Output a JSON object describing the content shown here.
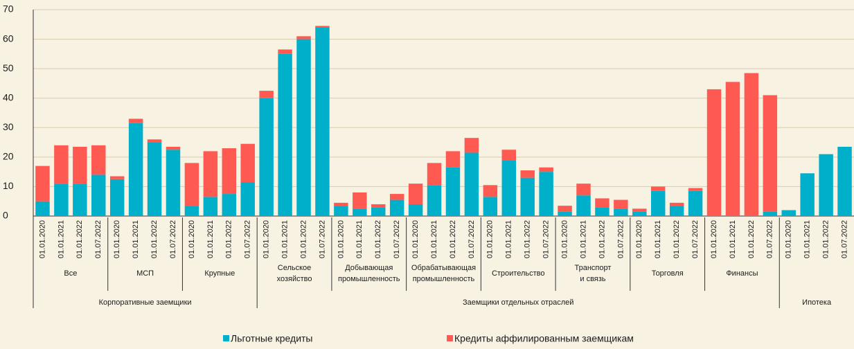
{
  "chart_data": {
    "type": "stacked-bar",
    "sectors": [
      {
        "name": "Корпоративные заемщики",
        "groups": [
          {
            "name": [
              "Все"
            ],
            "categories": [
              "01.01.2020",
              "01.01.2021",
              "01.01.2022",
              "01.07.2022"
            ]
          },
          {
            "name": [
              "МСП"
            ],
            "categories": [
              "01.01.2020",
              "01.01.2021",
              "01.01.2022",
              "01.07.2022"
            ]
          },
          {
            "name": [
              "Крупные"
            ],
            "categories": [
              "01.01.2020",
              "01.01.2021",
              "01.01.2022",
              "01.07.2022"
            ]
          }
        ]
      },
      {
        "name": "Заемщики отдельных отраслей",
        "groups": [
          {
            "name": [
              "Сельское",
              "хозяйство"
            ],
            "categories": [
              "01.01.2020",
              "01.01.2021",
              "01.01.2022",
              "01.07.2022"
            ]
          },
          {
            "name": [
              "Добывающая",
              "промышленность"
            ],
            "categories": [
              "01.01.2020",
              "01.01.2021",
              "01.01.2022",
              "01.07.2022"
            ]
          },
          {
            "name": [
              "Обрабатывающая",
              "промышленность"
            ],
            "categories": [
              "01.01.2020",
              "01.01.2021",
              "01.01.2022",
              "01.07.2022"
            ]
          },
          {
            "name": [
              "Строительство"
            ],
            "categories": [
              "01.01.2020",
              "01.01.2021",
              "01.01.2022",
              "01.07.2022"
            ]
          },
          {
            "name": [
              "Транспорт",
              "и связь"
            ],
            "categories": [
              "01.01.2020",
              "01.01.2021",
              "01.01.2022",
              "01.07.2022"
            ]
          },
          {
            "name": [
              "Торговля"
            ],
            "categories": [
              "01.01.2020",
              "01.01.2021",
              "01.01.2022",
              "01.07.2022"
            ]
          },
          {
            "name": [
              "Финансы"
            ],
            "categories": [
              "01.01.2020",
              "01.01.2021",
              "01.01.2022",
              "01.07.2022"
            ]
          }
        ]
      },
      {
        "name": "Ипотека",
        "groups": [
          {
            "name": [],
            "categories": [
              "01.01.2020",
              "01.01.2021",
              "01.01.2022",
              "01.07.2022"
            ]
          }
        ]
      }
    ],
    "series": [
      {
        "name": "Льготные кредиты",
        "color": "#00b0ca",
        "values": [
          5,
          11,
          11,
          14,
          12.5,
          31.5,
          25,
          22.5,
          3.5,
          6.5,
          7.5,
          11.5,
          40,
          55,
          60,
          64,
          3.5,
          2.5,
          3,
          5.5,
          4,
          10.5,
          16.5,
          21.5,
          6.5,
          19,
          13,
          15,
          1.5,
          7,
          3,
          2.5,
          1.5,
          8.5,
          3.5,
          8.5,
          0,
          0,
          0,
          1.5,
          2,
          14.5,
          21,
          23.5
        ]
      },
      {
        "name": "Кредиты аффилированным заемщикам",
        "color": "#ff5a52",
        "values": [
          12,
          13,
          12.5,
          10,
          1,
          1.5,
          1,
          1,
          14.5,
          15.5,
          15.5,
          13,
          2.5,
          1.5,
          1,
          0.5,
          1,
          5.5,
          1,
          2,
          7,
          7.5,
          5.5,
          5,
          4,
          3.5,
          2.5,
          1.5,
          2,
          4,
          3,
          3,
          1,
          1.5,
          1,
          1,
          43,
          45.5,
          48.5,
          39.5,
          0,
          0,
          0,
          0
        ]
      }
    ],
    "ylim": [
      0,
      70
    ],
    "yticks": [
      0,
      10,
      20,
      30,
      40,
      50,
      60,
      70
    ],
    "grid": true
  }
}
